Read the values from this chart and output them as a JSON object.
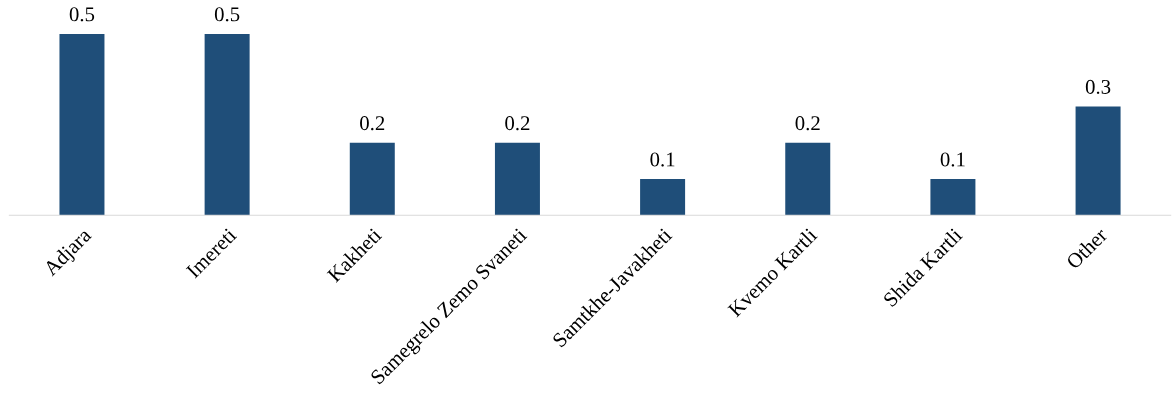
{
  "chart_data": {
    "type": "bar",
    "categories": [
      "Adjara",
      "Imereti",
      "Kakheti",
      "Samegrelo Zemo Svaneti",
      "Samtkhe-Javakheti",
      "Kvemo Kartli",
      "Shida Kartli",
      "Other"
    ],
    "values": [
      0.5,
      0.5,
      0.2,
      0.2,
      0.1,
      0.2,
      0.1,
      0.3
    ],
    "color": "#1f4e79",
    "data_labels": true,
    "grid": false,
    "legend": false
  }
}
